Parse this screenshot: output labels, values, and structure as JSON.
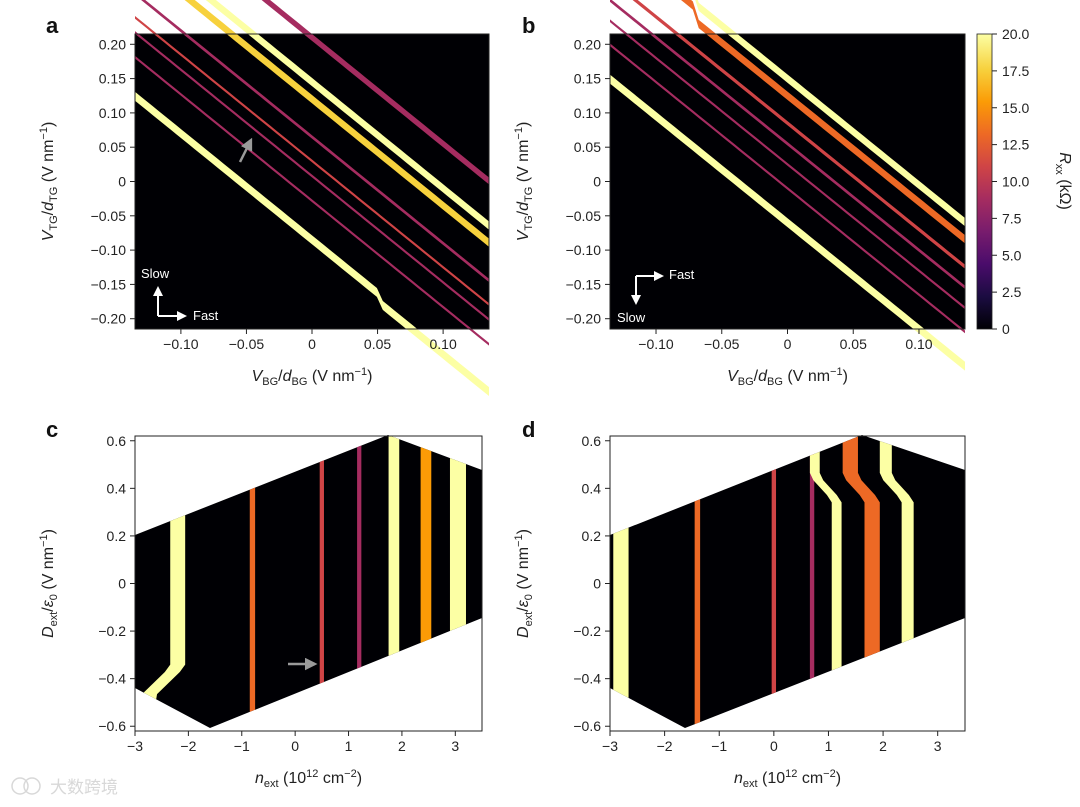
{
  "watermark": "大数跨境",
  "colormap": [
    "#000004",
    "#1b0c41",
    "#4a0c6b",
    "#781c6d",
    "#a52c60",
    "#cf4446",
    "#ed6925",
    "#fb9b06",
    "#f7d13d",
    "#fcffa4"
  ],
  "chart_data": [
    {
      "panel": "a",
      "type": "heatmap",
      "xlabel": {
        "var": "V",
        "var_sub": "BG",
        "div": "/d",
        "div_sub": "BG",
        "unit": " (V nm",
        "exp": "−1",
        "close": ")"
      },
      "ylabel": {
        "var": "V",
        "var_sub": "TG",
        "div": "/d",
        "div_sub": "TG",
        "unit": " (V nm",
        "exp": "−1",
        "close": ")"
      },
      "xlim": [
        -0.135,
        0.135
      ],
      "ylim": [
        -0.215,
        0.215
      ],
      "xticks": [
        -0.1,
        -0.05,
        0,
        0.05,
        0.1
      ],
      "xtick_labels": [
        "−0.10",
        "−0.05",
        "0",
        "0.05",
        "0.10"
      ],
      "yticks": [
        0.2,
        0.15,
        0.1,
        0.05,
        0,
        -0.05,
        -0.1,
        -0.15,
        -0.2
      ],
      "ytick_labels": [
        "0.20",
        "0.15",
        "0.10",
        "0.05",
        "0",
        "−0.05",
        "−0.10",
        "−0.15",
        "−0.20"
      ],
      "sweep": {
        "slow": "Slow",
        "fast": "Fast"
      },
      "bands": [
        {
          "c": 0.145,
          "w": 0.012,
          "v": 1.0,
          "step_at": null
        },
        {
          "c": 0.12,
          "w": 0.012,
          "v": 0.85,
          "step_at": null
        },
        {
          "c": 0.21,
          "w": 0.01,
          "v": 0.45,
          "step_at": null
        },
        {
          "c": 0.065,
          "w": 0.005,
          "v": 0.45,
          "step_at": null
        },
        {
          "c": 0.03,
          "w": 0.004,
          "v": 0.5,
          "step_at": null
        },
        {
          "c": 0.008,
          "w": 0.004,
          "v": 0.45,
          "step_at": null
        },
        {
          "c": -0.028,
          "w": 0.004,
          "v": 0.4,
          "step_at": null
        },
        {
          "c": -0.085,
          "w": 0.013,
          "v": 1.0,
          "step_at": 0.05
        }
      ]
    },
    {
      "panel": "b",
      "type": "heatmap",
      "xlabel": {
        "var": "V",
        "var_sub": "BG",
        "div": "/d",
        "div_sub": "BG",
        "unit": " (V nm",
        "exp": "−1",
        "close": ")"
      },
      "ylabel": {
        "var": "V",
        "var_sub": "TG",
        "div": "/d",
        "div_sub": "TG",
        "unit": " (V nm",
        "exp": "−1",
        "close": ")"
      },
      "xlim": [
        -0.135,
        0.135
      ],
      "ylim": [
        -0.215,
        0.215
      ],
      "xticks": [
        -0.1,
        -0.05,
        0,
        0.05,
        0.1
      ],
      "xtick_labels": [
        "−0.10",
        "−0.05",
        "0",
        "0.05",
        "0.10"
      ],
      "yticks": [
        0.2,
        0.15,
        0.1,
        0.05,
        0,
        -0.05,
        -0.1,
        -0.15,
        -0.2
      ],
      "ytick_labels": [
        "0.20",
        "0.15",
        "0.10",
        "0.05",
        "0",
        "−0.05",
        "−0.10",
        "−0.15",
        "−0.20"
      ],
      "sweep": {
        "slow": "Slow",
        "fast": "Fast"
      },
      "bands": [
        {
          "c": 0.15,
          "w": 0.012,
          "v": 1.0,
          "step_at": -0.07
        },
        {
          "c": 0.125,
          "w": 0.012,
          "v": 0.7,
          "step_at": -0.07
        },
        {
          "c": 0.085,
          "w": 0.006,
          "v": 0.5,
          "step_at": null
        },
        {
          "c": 0.055,
          "w": 0.005,
          "v": 0.45,
          "step_at": null
        },
        {
          "c": 0.025,
          "w": 0.004,
          "v": 0.45,
          "step_at": null
        },
        {
          "c": -0.01,
          "w": 0.004,
          "v": 0.4,
          "step_at": null
        },
        {
          "c": -0.06,
          "w": 0.013,
          "v": 1.0,
          "step_at": null
        }
      ],
      "colorbar": {
        "label_var": "R",
        "label_sub": "xx",
        "label_unit": " (kΩ)",
        "range": [
          0,
          20
        ],
        "ticks": [
          20.0,
          17.5,
          15.0,
          12.5,
          10.0,
          7.5,
          5.0,
          2.5,
          0
        ],
        "tick_labels": [
          "20.0",
          "17.5",
          "15.0",
          "12.5",
          "10.0",
          "7.5",
          "5.0",
          "2.5",
          "0"
        ]
      }
    },
    {
      "panel": "c",
      "type": "heatmap",
      "xlabel": {
        "var": "n",
        "var_sub": "ext",
        "div": "",
        "div_sub": "",
        "unit": " (10",
        "exp": "12",
        "unit2": " cm",
        "exp2": "−2",
        "close": ")"
      },
      "ylabel": {
        "var": "D",
        "var_sub": "ext",
        "div": "/ε",
        "div_sub": "0",
        "unit": " (V nm",
        "exp": "−1",
        "close": ")"
      },
      "xlim": [
        -3,
        3.5
      ],
      "ylim": [
        -0.62,
        0.62
      ],
      "xticks": [
        -3,
        -2,
        -1,
        0,
        1,
        2,
        3
      ],
      "xtick_labels": [
        "−3",
        "−2",
        "−1",
        "0",
        "1",
        "2",
        "3"
      ],
      "yticks": [
        0.6,
        0.4,
        0.2,
        0,
        -0.2,
        -0.4,
        -0.6
      ],
      "ytick_labels": [
        "0.6",
        "0.4",
        "0.2",
        "0",
        "−0.2",
        "−0.4",
        "−0.6"
      ],
      "bands": [
        {
          "n": -2.2,
          "w": 0.14,
          "v": 1.0,
          "shift": -0.55
        },
        {
          "n": -0.8,
          "w": 0.05,
          "v": 0.7,
          "shift": 0
        },
        {
          "n": 0.5,
          "w": 0.04,
          "v": 0.6,
          "shift": 0
        },
        {
          "n": 1.2,
          "w": 0.04,
          "v": 0.45,
          "shift": 0
        },
        {
          "n": 1.85,
          "w": 0.1,
          "v": 1.0,
          "shift": 0
        },
        {
          "n": 2.45,
          "w": 0.1,
          "v": 0.8,
          "shift": 0
        },
        {
          "n": 3.05,
          "w": 0.15,
          "v": 1.0,
          "shift": 0
        }
      ]
    },
    {
      "panel": "d",
      "type": "heatmap",
      "xlabel": {
        "var": "n",
        "var_sub": "ext",
        "div": "",
        "div_sub": "",
        "unit": " (10",
        "exp": "12",
        "unit2": " cm",
        "exp2": "−2",
        "close": ")"
      },
      "ylabel": {
        "var": "D",
        "var_sub": "ext",
        "div": "/ε",
        "div_sub": "0",
        "unit": " (V nm",
        "exp": "−1",
        "close": ")"
      },
      "xlim": [
        -3,
        3.5
      ],
      "ylim": [
        -0.62,
        0.62
      ],
      "xticks": [
        -3,
        -2,
        -1,
        0,
        1,
        2,
        3
      ],
      "xtick_labels": [
        "−3",
        "−2",
        "−1",
        "0",
        "1",
        "2",
        "3"
      ],
      "yticks": [
        0.6,
        0.4,
        0.2,
        0,
        -0.2,
        -0.4,
        -0.6
      ],
      "ytick_labels": [
        "0.6",
        "0.4",
        "0.2",
        "0",
        "−0.2",
        "−0.4",
        "−0.6"
      ],
      "bands": [
        {
          "n": -2.8,
          "w": 0.14,
          "v": 1.0,
          "shift": 0
        },
        {
          "n": -1.4,
          "w": 0.05,
          "v": 0.65,
          "shift": 0
        },
        {
          "n": 0.0,
          "w": 0.04,
          "v": 0.6,
          "shift": 0
        },
        {
          "n": 0.7,
          "w": 0.04,
          "v": 0.4,
          "shift": 0
        },
        {
          "n": 1.15,
          "w": 0.09,
          "v": 1.0,
          "shift": 0.4
        },
        {
          "n": 1.8,
          "w": 0.14,
          "v": 0.65,
          "shift": 0.4
        },
        {
          "n": 2.45,
          "w": 0.11,
          "v": 1.0,
          "shift": 0.4
        }
      ]
    }
  ]
}
